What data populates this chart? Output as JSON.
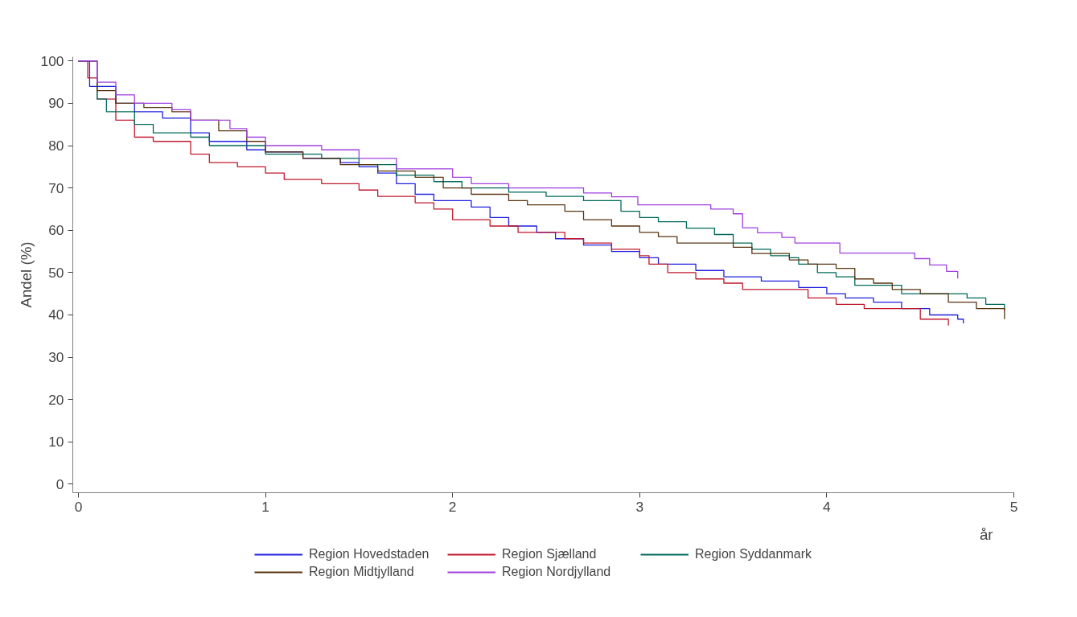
{
  "chart_data": {
    "type": "step",
    "ylabel": "Andel (%)",
    "xlabel": "år",
    "xlim": [
      -0.03,
      5
    ],
    "ylim": [
      -2,
      101
    ],
    "xticks": [
      0,
      1,
      2,
      3,
      4,
      5
    ],
    "yticks": [
      0,
      10,
      20,
      30,
      40,
      50,
      60,
      70,
      80,
      90,
      100
    ],
    "grid": false,
    "legend": "bottom",
    "line_style": "solid",
    "marker": "none",
    "series": [
      {
        "name": "Region Hovedstaden",
        "color": "#2020e0",
        "x": [
          0,
          0.06,
          0.2,
          0.3,
          0.45,
          0.6,
          0.7,
          0.9,
          1.0,
          1.2,
          1.4,
          1.5,
          1.6,
          1.7,
          1.8,
          1.9,
          2.1,
          2.2,
          2.3,
          2.45,
          2.55,
          2.7,
          2.85,
          3.0,
          3.1,
          3.3,
          3.45,
          3.65,
          3.85,
          4.0,
          4.1,
          4.25,
          4.4,
          4.55,
          4.7,
          4.73
        ],
        "values": [
          100,
          94,
          90,
          88,
          86.5,
          83,
          81,
          79,
          78.5,
          77,
          76,
          75,
          73.5,
          71,
          68.5,
          67,
          65.5,
          63,
          61,
          59.5,
          58,
          56.5,
          55,
          53.5,
          52,
          50.5,
          49,
          48,
          46.5,
          45,
          44,
          43,
          41.5,
          40,
          39,
          38
        ]
      },
      {
        "name": "Region Sjælland",
        "color": "#c0182c",
        "x": [
          0,
          0.05,
          0.1,
          0.2,
          0.3,
          0.4,
          0.6,
          0.7,
          0.85,
          1.0,
          1.1,
          1.3,
          1.5,
          1.6,
          1.8,
          1.9,
          2.0,
          2.2,
          2.35,
          2.6,
          2.7,
          2.85,
          3.0,
          3.05,
          3.15,
          3.3,
          3.45,
          3.55,
          3.9,
          4.05,
          4.2,
          4.5,
          4.65
        ],
        "values": [
          100,
          96,
          91,
          86,
          82,
          81,
          78,
          76,
          75,
          73.5,
          72,
          71,
          69.5,
          68,
          66.5,
          65,
          62.5,
          61,
          59.5,
          58,
          57,
          55.5,
          54,
          52,
          50,
          48.5,
          47.5,
          46,
          44,
          42.5,
          41.5,
          39,
          37.5
        ]
      },
      {
        "name": "Region Syddanmark",
        "color": "#006a5a",
        "x": [
          0,
          0.1,
          0.15,
          0.3,
          0.4,
          0.6,
          0.7,
          1.0,
          1.3,
          1.5,
          1.7,
          1.9,
          2.05,
          2.3,
          2.5,
          2.7,
          2.9,
          3.0,
          3.1,
          3.25,
          3.4,
          3.5,
          3.6,
          3.7,
          3.8,
          3.85,
          3.95,
          4.05,
          4.15,
          4.4,
          4.75,
          4.85,
          4.95
        ],
        "values": [
          100,
          91,
          88,
          85,
          83,
          82,
          80,
          78,
          77,
          75.5,
          73,
          71.5,
          70,
          69,
          68,
          67,
          64.5,
          63,
          62,
          60.5,
          59,
          57,
          55.5,
          54,
          53.5,
          52,
          50,
          49,
          47,
          45,
          44,
          42.5,
          41
        ]
      },
      {
        "name": "Region Midtjylland",
        "color": "#5a3410",
        "x": [
          0,
          0.1,
          0.2,
          0.35,
          0.5,
          0.6,
          0.75,
          0.9,
          1.0,
          1.2,
          1.4,
          1.6,
          1.8,
          1.95,
          2.1,
          2.3,
          2.4,
          2.6,
          2.7,
          2.85,
          3.0,
          3.1,
          3.2,
          3.5,
          3.6,
          3.8,
          3.9,
          4.05,
          4.15,
          4.25,
          4.35,
          4.5,
          4.65,
          4.8,
          4.95
        ],
        "values": [
          100,
          93,
          90,
          89,
          88,
          86,
          83.5,
          81,
          78.5,
          77,
          75.5,
          74,
          72.5,
          70,
          68.5,
          67,
          66,
          64.5,
          62.5,
          61,
          59.5,
          58.5,
          57,
          56,
          54.5,
          53,
          52,
          51,
          48.5,
          47.5,
          46,
          45,
          43,
          41.5,
          39
        ]
      },
      {
        "name": "Region Nordjylland",
        "color": "#a040e0",
        "x": [
          0,
          0.1,
          0.2,
          0.3,
          0.5,
          0.6,
          0.81,
          0.9,
          1.0,
          1.3,
          1.5,
          1.7,
          2.0,
          2.1,
          2.3,
          2.7,
          2.85,
          2.99,
          3.38,
          3.5,
          3.55,
          3.63,
          3.76,
          3.83,
          4.07,
          4.47,
          4.55,
          4.64,
          4.7
        ],
        "values": [
          100,
          95,
          92,
          90,
          88.5,
          86,
          84,
          82,
          80,
          79,
          77,
          74.5,
          72.5,
          71,
          70,
          68.8,
          67.9,
          66,
          65,
          63.9,
          60.6,
          59.4,
          58.3,
          57,
          54.6,
          53.3,
          51.8,
          50.3,
          48.6
        ]
      }
    ]
  }
}
